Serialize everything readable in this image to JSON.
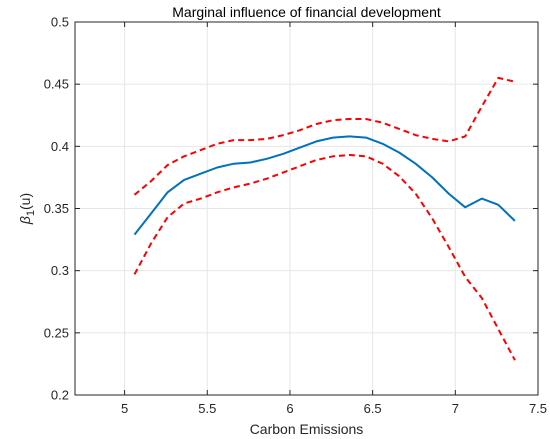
{
  "chart_data": {
    "type": "line",
    "title": "Marginal influence of financial development",
    "xlabel": "Carbon Emissions",
    "ylabel": {
      "base": "β",
      "sub": "1",
      "suffix": "(u)"
    },
    "xlim": [
      4.7,
      7.5
    ],
    "ylim": [
      0.2,
      0.5
    ],
    "xticks": [
      5,
      5.5,
      6,
      6.5,
      7,
      7.5
    ],
    "yticks": [
      0.2,
      0.25,
      0.3,
      0.35,
      0.4,
      0.45,
      0.5
    ],
    "xtick_labels": [
      "5",
      "5.5",
      "6",
      "6.5",
      "7",
      "7.5"
    ],
    "ytick_labels": [
      "0.2",
      "0.25",
      "0.3",
      "0.35",
      "0.4",
      "0.45",
      "0.5"
    ],
    "grid": true,
    "x": [
      5.06,
      5.16,
      5.26,
      5.36,
      5.46,
      5.56,
      5.66,
      5.76,
      5.86,
      5.96,
      6.06,
      6.16,
      6.26,
      6.36,
      6.46,
      6.56,
      6.66,
      6.76,
      6.86,
      6.96,
      7.06,
      7.16,
      7.26,
      7.36
    ],
    "series": [
      {
        "style": "solid",
        "color": "#0072BD",
        "values": [
          0.329,
          0.346,
          0.363,
          0.373,
          0.378,
          0.383,
          0.386,
          0.387,
          0.39,
          0.394,
          0.399,
          0.404,
          0.407,
          0.408,
          0.407,
          0.402,
          0.395,
          0.386,
          0.375,
          0.362,
          0.351,
          0.358,
          0.353,
          0.34
        ]
      },
      {
        "style": "dashed",
        "color": "#FF0000",
        "values": [
          0.361,
          0.372,
          0.385,
          0.392,
          0.397,
          0.402,
          0.405,
          0.405,
          0.406,
          0.409,
          0.413,
          0.418,
          0.421,
          0.422,
          0.422,
          0.419,
          0.414,
          0.409,
          0.406,
          0.404,
          0.408,
          0.432,
          0.455,
          0.452
        ]
      },
      {
        "style": "dashed",
        "color": "#FF0000",
        "values": [
          0.297,
          0.322,
          0.343,
          0.354,
          0.358,
          0.363,
          0.367,
          0.37,
          0.374,
          0.379,
          0.384,
          0.389,
          0.392,
          0.393,
          0.392,
          0.386,
          0.376,
          0.362,
          0.342,
          0.319,
          0.295,
          0.278,
          0.253,
          0.228
        ]
      }
    ]
  }
}
